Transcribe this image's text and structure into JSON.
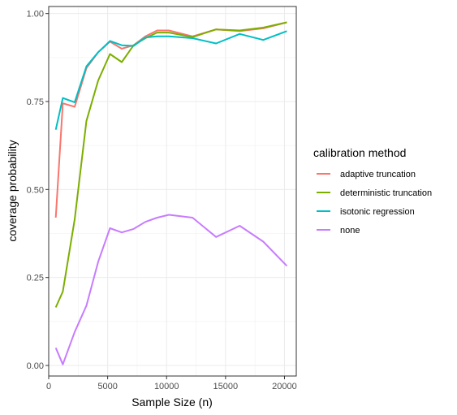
{
  "chart_data": {
    "type": "line",
    "xlabel": "Sample Size (n)",
    "ylabel": "coverage probability",
    "xlim": [
      0,
      21000
    ],
    "ylim": [
      -0.03,
      1.02
    ],
    "x_ticks": [
      0,
      5000,
      10000,
      15000,
      20000
    ],
    "x_tick_labels": [
      "0",
      "5000",
      "10000",
      "15000",
      "20000"
    ],
    "y_ticks": [
      0,
      0.25,
      0.5,
      0.75,
      1.0
    ],
    "y_tick_labels": [
      "0.00",
      "0.25",
      "0.50",
      "0.75",
      "1.00"
    ],
    "grid": true,
    "legend": {
      "title": "calibration method",
      "placement": "right"
    },
    "series": [
      {
        "name": "adaptive truncation",
        "color": "#F8766D",
        "x": [
          600,
          1200,
          2200,
          3200,
          4200,
          5200,
          6200,
          7200,
          8200,
          9200,
          10200,
          12200,
          14200,
          16200,
          18200,
          20200
        ],
        "y": [
          0.42,
          0.745,
          0.735,
          0.845,
          0.89,
          0.92,
          0.9,
          0.91,
          0.935,
          0.952,
          0.952,
          0.935,
          0.955,
          0.95,
          0.958,
          0.975
        ]
      },
      {
        "name": "deterministic truncation",
        "color": "#7CAE00",
        "x": [
          600,
          1200,
          2200,
          3200,
          4200,
          5200,
          6200,
          7200,
          8200,
          9200,
          10200,
          12200,
          14200,
          16200,
          18200,
          20200
        ],
        "y": [
          0.165,
          0.21,
          0.415,
          0.695,
          0.81,
          0.885,
          0.862,
          0.91,
          0.93,
          0.946,
          0.946,
          0.933,
          0.955,
          0.952,
          0.96,
          0.975
        ]
      },
      {
        "name": "isotonic regression",
        "color": "#00BFC4",
        "x": [
          600,
          1200,
          2200,
          3200,
          4200,
          5200,
          6200,
          7200,
          8200,
          9200,
          10200,
          12200,
          14200,
          16200,
          18200,
          20200
        ],
        "y": [
          0.67,
          0.76,
          0.748,
          0.85,
          0.89,
          0.922,
          0.91,
          0.908,
          0.932,
          0.935,
          0.935,
          0.93,
          0.915,
          0.942,
          0.925,
          0.95
        ]
      },
      {
        "name": "none",
        "color": "#C77CFF",
        "x": [
          600,
          1200,
          2200,
          3200,
          4200,
          5200,
          6200,
          7200,
          8200,
          9200,
          10200,
          12200,
          14200,
          16200,
          18200,
          20200
        ],
        "y": [
          0.05,
          0.003,
          0.095,
          0.17,
          0.295,
          0.39,
          0.378,
          0.388,
          0.408,
          0.42,
          0.428,
          0.42,
          0.365,
          0.397,
          0.352,
          0.283
        ]
      }
    ]
  }
}
